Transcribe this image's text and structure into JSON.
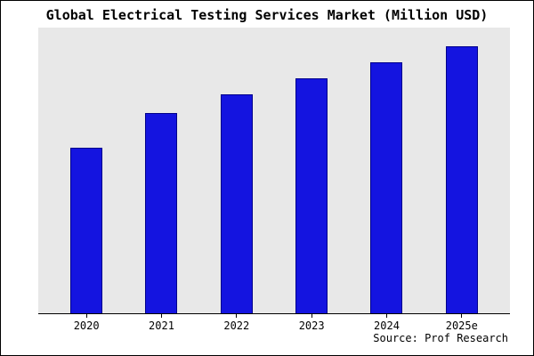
{
  "window": {
    "title": "Global Electrical Testing Services Market (Million USD)"
  },
  "chart_data": {
    "type": "bar",
    "title": "Global Electrical Testing Services Market (Million USD)",
    "categories": [
      "2020",
      "2021",
      "2022",
      "2023",
      "2024",
      "2025e"
    ],
    "values": [
      62,
      75,
      82,
      88,
      94,
      100
    ],
    "value_note": "No y-axis tick labels are shown in the figure; values are relative bar heights indexed to max = 100",
    "xlabel": "",
    "ylabel": "",
    "ylim": [
      0,
      107
    ],
    "grid": false,
    "legend": false,
    "colors": {
      "bar_fill": "#1414e0",
      "bar_edge": "#00008b",
      "plot_background": "#e8e8e8",
      "page_background": "#ffffff",
      "axis": "#000000"
    }
  },
  "source": {
    "label": "Source: Prof Research"
  }
}
